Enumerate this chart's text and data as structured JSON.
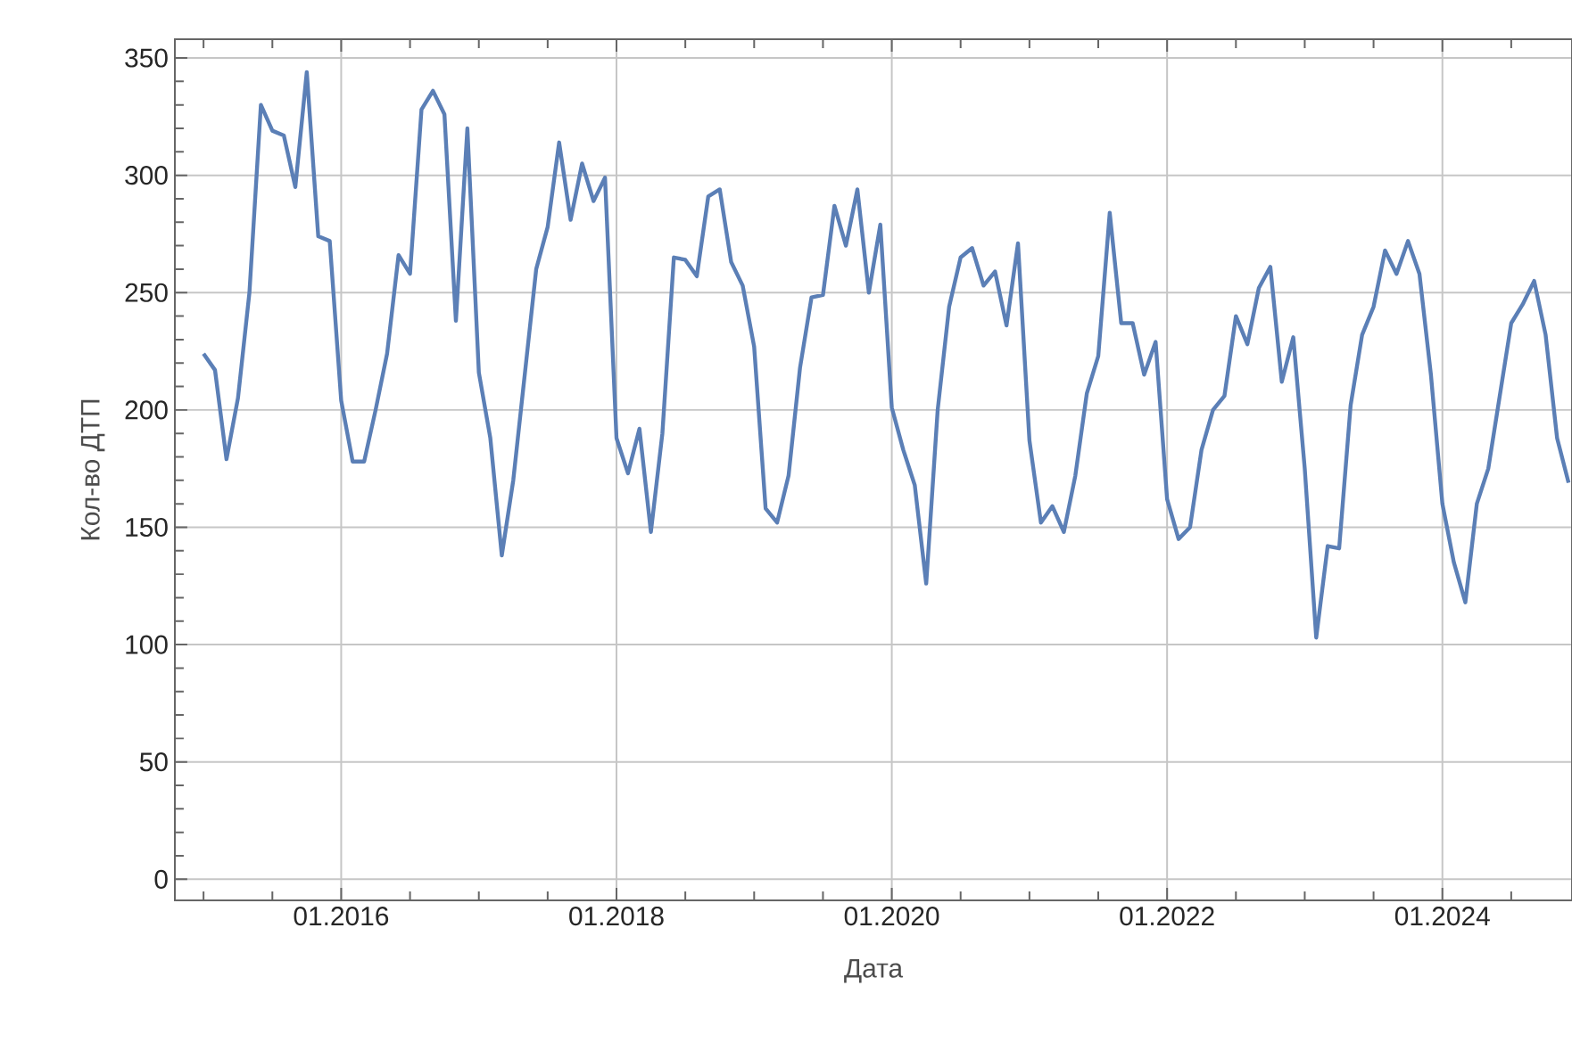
{
  "chart_data": {
    "type": "line",
    "xlabel": "Дата",
    "ylabel": "Кол-во ДТП",
    "x": [
      "2015-01",
      "2015-02",
      "2015-03",
      "2015-04",
      "2015-05",
      "2015-06",
      "2015-07",
      "2015-08",
      "2015-09",
      "2015-10",
      "2015-11",
      "2015-12",
      "2016-01",
      "2016-02",
      "2016-03",
      "2016-04",
      "2016-05",
      "2016-06",
      "2016-07",
      "2016-08",
      "2016-09",
      "2016-10",
      "2016-11",
      "2016-12",
      "2017-01",
      "2017-02",
      "2017-03",
      "2017-04",
      "2017-05",
      "2017-06",
      "2017-07",
      "2017-08",
      "2017-09",
      "2017-10",
      "2017-11",
      "2017-12",
      "2018-01",
      "2018-02",
      "2018-03",
      "2018-04",
      "2018-05",
      "2018-06",
      "2018-07",
      "2018-08",
      "2018-09",
      "2018-10",
      "2018-11",
      "2018-12",
      "2019-01",
      "2019-02",
      "2019-03",
      "2019-04",
      "2019-05",
      "2019-06",
      "2019-07",
      "2019-08",
      "2019-09",
      "2019-10",
      "2019-11",
      "2019-12",
      "2020-01",
      "2020-02",
      "2020-03",
      "2020-04",
      "2020-05",
      "2020-06",
      "2020-07",
      "2020-08",
      "2020-09",
      "2020-10",
      "2020-11",
      "2020-12",
      "2021-01",
      "2021-02",
      "2021-03",
      "2021-04",
      "2021-05",
      "2021-06",
      "2021-07",
      "2021-08",
      "2021-09",
      "2021-10",
      "2021-11",
      "2021-12",
      "2022-01",
      "2022-02",
      "2022-03",
      "2022-04",
      "2022-05",
      "2022-06",
      "2022-07",
      "2022-08",
      "2022-09",
      "2022-10",
      "2022-11",
      "2022-12",
      "2023-01",
      "2023-02",
      "2023-03",
      "2023-04",
      "2023-05",
      "2023-06",
      "2023-07",
      "2023-08",
      "2023-09",
      "2023-10",
      "2023-11",
      "2023-12",
      "2024-01",
      "2024-02",
      "2024-03",
      "2024-04",
      "2024-05",
      "2024-06",
      "2024-07",
      "2024-08",
      "2024-09",
      "2024-10",
      "2024-11",
      "2024-12"
    ],
    "series": [
      {
        "color": "#5b7fb6",
        "values": [
          224,
          217,
          179,
          205,
          250,
          330,
          319,
          317,
          295,
          344,
          274,
          272,
          204,
          178,
          178,
          200,
          224,
          266,
          258,
          328,
          336,
          326,
          238,
          320,
          216,
          188,
          138,
          170,
          215,
          260,
          278,
          314,
          281,
          305,
          289,
          299,
          188,
          173,
          192,
          148,
          190,
          265,
          264,
          257,
          291,
          294,
          263,
          253,
          227,
          158,
          152,
          172,
          218,
          248,
          249,
          287,
          270,
          294,
          250,
          279,
          201,
          183,
          168,
          126,
          200,
          244,
          265,
          269,
          253,
          259,
          236,
          271,
          187,
          152,
          159,
          148,
          172,
          207,
          223,
          284,
          237,
          237,
          215,
          229,
          162,
          145,
          150,
          183,
          200,
          206,
          240,
          228,
          252,
          261,
          212,
          231,
          175,
          103,
          142,
          141,
          202,
          232,
          244,
          268,
          258,
          272,
          258,
          215,
          160,
          135,
          118,
          160,
          175,
          206,
          237,
          245,
          255,
          232,
          188,
          169
        ]
      }
    ],
    "xlim": [
      "2014-10-15",
      "2024-12-10"
    ],
    "xticks": [
      {
        "value": "2015-01",
        "label": null
      },
      {
        "value": "2015-07",
        "label": null
      },
      {
        "value": "2016-01",
        "label": "01.2016"
      },
      {
        "value": "2016-07",
        "label": null
      },
      {
        "value": "2017-01",
        "label": null
      },
      {
        "value": "2017-07",
        "label": null
      },
      {
        "value": "2018-01",
        "label": "01.2018"
      },
      {
        "value": "2018-07",
        "label": null
      },
      {
        "value": "2019-01",
        "label": null
      },
      {
        "value": "2019-07",
        "label": null
      },
      {
        "value": "2020-01",
        "label": "01.2020"
      },
      {
        "value": "2020-07",
        "label": null
      },
      {
        "value": "2021-01",
        "label": null
      },
      {
        "value": "2021-07",
        "label": null
      },
      {
        "value": "2022-01",
        "label": "01.2022"
      },
      {
        "value": "2022-07",
        "label": null
      },
      {
        "value": "2023-01",
        "label": null
      },
      {
        "value": "2023-07",
        "label": null
      },
      {
        "value": "2024-01",
        "label": "01.2024"
      },
      {
        "value": "2024-07",
        "label": null
      }
    ],
    "ylim": [
      -9,
      358
    ],
    "yticks": [
      0,
      {
        "value": 10,
        "label": null
      },
      {
        "value": 20,
        "label": null
      },
      {
        "value": 30,
        "label": null
      },
      {
        "value": 40,
        "label": null
      },
      50,
      {
        "value": 60,
        "label": null
      },
      {
        "value": 70,
        "label": null
      },
      {
        "value": 80,
        "label": null
      },
      {
        "value": 90,
        "label": null
      },
      100,
      {
        "value": 110,
        "label": null
      },
      {
        "value": 120,
        "label": null
      },
      {
        "value": 130,
        "label": null
      },
      {
        "value": 140,
        "label": null
      },
      150,
      {
        "value": 160,
        "label": null
      },
      {
        "value": 170,
        "label": null
      },
      {
        "value": 180,
        "label": null
      },
      {
        "value": 190,
        "label": null
      },
      200,
      {
        "value": 210,
        "label": null
      },
      {
        "value": 220,
        "label": null
      },
      {
        "value": 230,
        "label": null
      },
      {
        "value": 240,
        "label": null
      },
      250,
      {
        "value": 260,
        "label": null
      },
      {
        "value": 270,
        "label": null
      },
      {
        "value": 280,
        "label": null
      },
      {
        "value": 290,
        "label": null
      },
      300,
      {
        "value": 310,
        "label": null
      },
      {
        "value": 320,
        "label": null
      },
      {
        "value": 330,
        "label": null
      },
      {
        "value": 340,
        "label": null
      },
      350
    ],
    "grid": true,
    "marker": "none",
    "line_style": "solid"
  }
}
